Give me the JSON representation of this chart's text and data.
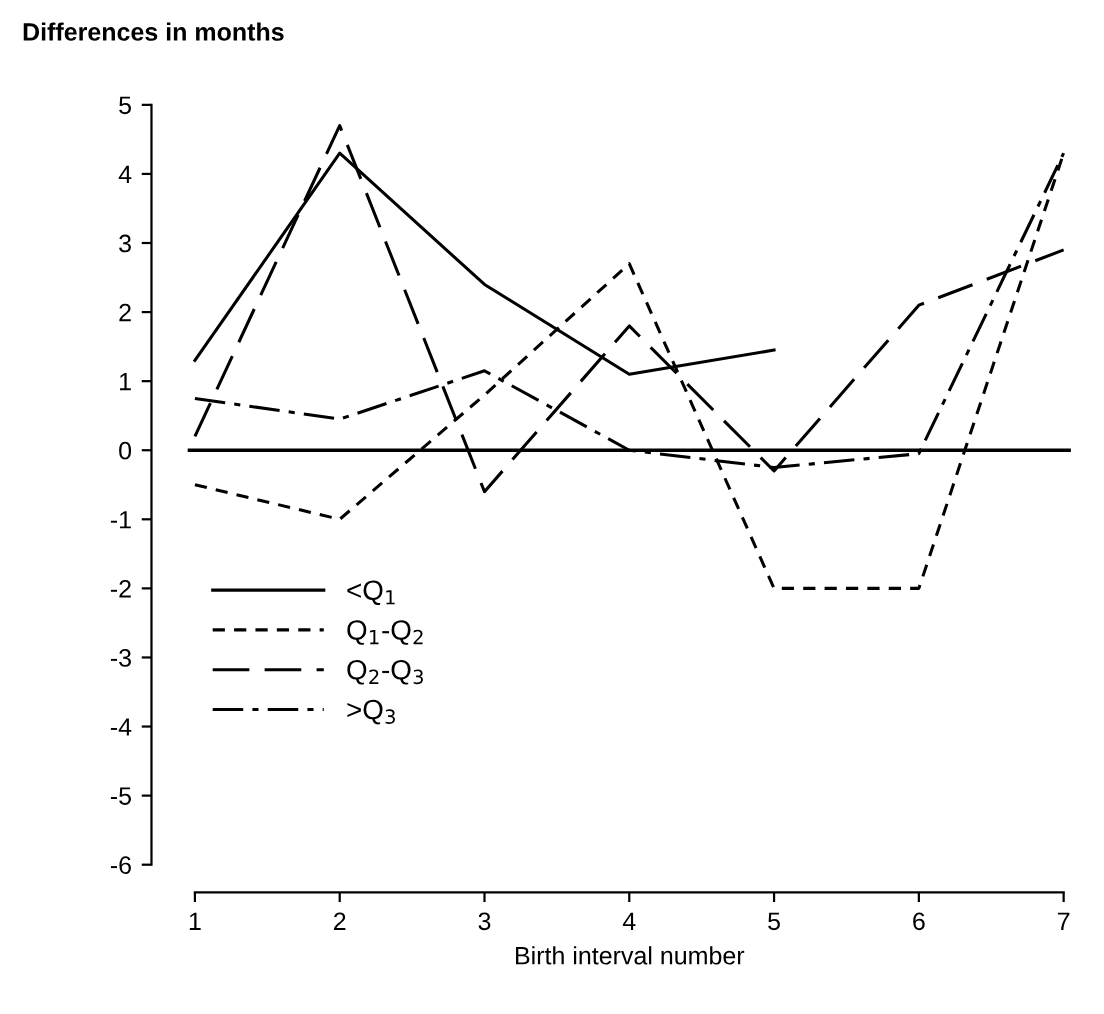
{
  "chart_data": {
    "type": "line",
    "ylabel": "Differences in months",
    "xlabel": "Birth interval number",
    "x": [
      1,
      2,
      3,
      4,
      5,
      6,
      7
    ],
    "series": [
      {
        "name": "<Q$_{1}$",
        "color": "#000000",
        "line_style": "solid",
        "values": [
          1.3,
          4.3,
          2.4,
          1.1,
          1.45,
          null,
          null
        ]
      },
      {
        "name": "Q$_{1}$-Q$_{2}$",
        "color": "#000000",
        "line_style": "dashed",
        "values": [
          -0.5,
          -1.0,
          0.8,
          2.7,
          -2.0,
          -2.0,
          4.3
        ]
      },
      {
        "name": "Q$_{2}$-Q$_{3}$",
        "color": "#000000",
        "line_style": "longdash",
        "values": [
          0.2,
          4.7,
          -0.6,
          1.8,
          -0.3,
          2.1,
          2.9
        ]
      },
      {
        "name": ">Q$_{3}$",
        "color": "#000000",
        "line_style": "dashdot",
        "values": [
          0.75,
          0.45,
          1.15,
          0.0,
          -0.25,
          -0.05,
          4.3
        ]
      }
    ],
    "xlim": [
      1,
      7
    ],
    "xticks": [
      1,
      2,
      3,
      4,
      5,
      6,
      7
    ],
    "ylim": [
      -6,
      5
    ],
    "yticks": [
      -6,
      -5,
      -4,
      -3,
      -2,
      -1,
      0,
      1,
      2,
      3,
      4,
      5
    ],
    "ref_lines": [
      {
        "axis": "y",
        "value": 0,
        "color": "#000000"
      }
    ],
    "grid": false,
    "legend": "bottom left",
    "marker": "none"
  }
}
